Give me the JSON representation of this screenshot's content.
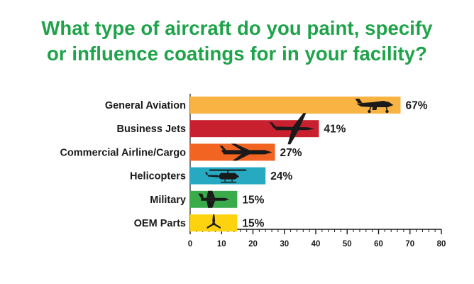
{
  "chart_data": {
    "type": "bar",
    "orientation": "horizontal",
    "title_lines": [
      "What type of aircraft do you paint, specify",
      "or influence coatings for in your facility?"
    ],
    "categories": [
      "General Aviation",
      "Business Jets",
      "Commercial Airline/Cargo",
      "Helicopters",
      "Military",
      "OEM Parts"
    ],
    "values": [
      67,
      41,
      27,
      24,
      15,
      15
    ],
    "value_labels": [
      "67%",
      "41%",
      "27%",
      "24%",
      "15%",
      "15%"
    ],
    "colors": [
      "#f9b342",
      "#c8202f",
      "#f26422",
      "#27a9c1",
      "#3aab4a",
      "#fdd20f"
    ],
    "icons": [
      "small-plane-icon",
      "business-jet-icon",
      "airliner-icon",
      "helicopter-icon",
      "fighter-jet-icon",
      "propeller-icon"
    ],
    "xlim": [
      0,
      80
    ],
    "xticks": [
      0,
      10,
      20,
      30,
      40,
      50,
      60,
      70,
      80
    ],
    "xlabel": "",
    "ylabel": "",
    "grid": false,
    "legend": "none"
  }
}
